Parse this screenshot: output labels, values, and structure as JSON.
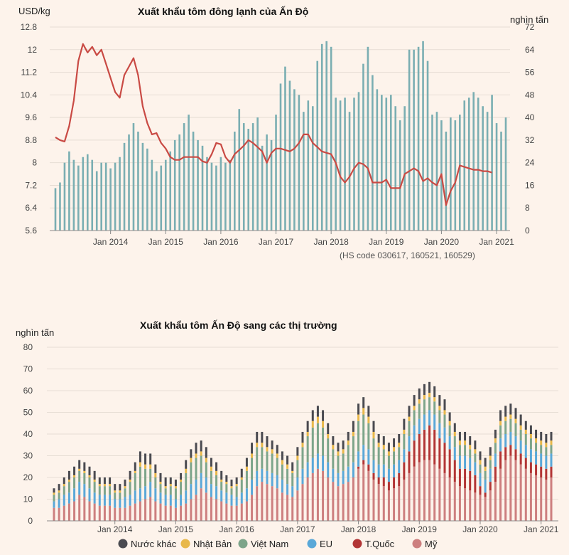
{
  "chart_data": [
    {
      "type": "bar+line",
      "title": "Xuất khẩu tôm đông lạnh của Ấn Độ",
      "left_unit": "USD/kg",
      "right_unit": "nghìn tấn",
      "note": "(HS code 030617, 160521, 160529)",
      "left_ticks": [
        "5.6",
        "6.4",
        "7.2",
        "8",
        "8.8",
        "9.6",
        "10.4",
        "11.2",
        "12",
        "12.8"
      ],
      "right_ticks": [
        "0",
        "8",
        "16",
        "24",
        "32",
        "40",
        "48",
        "56",
        "64",
        "72"
      ],
      "x_ticks": [
        "Jan 2014",
        "Jan 2015",
        "Jan 2016",
        "Jan 2017",
        "Jan 2018",
        "Jan 2019",
        "Jan 2020",
        "Jan 2021"
      ],
      "ylim_left": [
        5.6,
        12.8
      ],
      "ylim_right": [
        0,
        72
      ],
      "start_month": "2013-01",
      "volume_thousand_tonnes": [
        15,
        17,
        24,
        28,
        25,
        23,
        26,
        27,
        25,
        21,
        24,
        24,
        22,
        24,
        26,
        31,
        34,
        38,
        35,
        31,
        29,
        25,
        21,
        23,
        25,
        28,
        32,
        34,
        38,
        41,
        35,
        32,
        30,
        26,
        24,
        23,
        26,
        24,
        25,
        35,
        43,
        38,
        36,
        38,
        40,
        30,
        34,
        32,
        41,
        52,
        58,
        53,
        50,
        48,
        42,
        46,
        44,
        60,
        66,
        67,
        65,
        47,
        46,
        47,
        42,
        47,
        49,
        59,
        65,
        55,
        50,
        48,
        47,
        48,
        44,
        39,
        44,
        64,
        64,
        65,
        67,
        60,
        41,
        42,
        39,
        35,
        40,
        39,
        41,
        46,
        47,
        49,
        47,
        44,
        42,
        48,
        38,
        35,
        40
      ],
      "price_usd_per_kg": [
        8.9,
        8.8,
        8.75,
        9.3,
        10.2,
        11.6,
        12.2,
        11.9,
        12.1,
        11.8,
        12.0,
        11.5,
        11.0,
        10.5,
        10.3,
        11.1,
        11.4,
        11.7,
        11.1,
        10.0,
        9.4,
        9.0,
        9.05,
        8.7,
        8.5,
        8.2,
        8.1,
        8.1,
        8.2,
        8.2,
        8.2,
        8.2,
        8.05,
        8.0,
        8.3,
        8.7,
        8.65,
        8.2,
        8.0,
        8.3,
        8.45,
        8.6,
        8.8,
        8.7,
        8.55,
        8.4,
        8.0,
        8.35,
        8.5,
        8.5,
        8.45,
        8.4,
        8.5,
        8.7,
        9.0,
        9.0,
        8.7,
        8.55,
        8.4,
        8.35,
        8.3,
        8.0,
        7.5,
        7.3,
        7.5,
        7.8,
        8.0,
        7.95,
        7.8,
        7.3,
        7.3,
        7.3,
        7.4,
        7.1,
        7.1,
        7.1,
        7.6,
        7.7,
        7.8,
        7.7,
        7.35,
        7.45,
        7.3,
        7.2,
        7.6,
        6.5,
        7.0,
        7.3,
        7.9,
        7.85,
        7.8,
        7.75,
        7.75,
        7.7,
        7.7,
        7.65
      ]
    },
    {
      "type": "stacked_bar",
      "title": "Xuất khẩu tôm Ấn Độ sang các thị trường",
      "unit": "nghìn tấn",
      "y_ticks": [
        "0",
        "10",
        "20",
        "30",
        "40",
        "50",
        "60",
        "70",
        "80"
      ],
      "ylim": [
        0,
        80
      ],
      "x_ticks": [
        "Jan 2014",
        "Jan 2015",
        "Jan 2016",
        "Jan 2017",
        "Jan 2018",
        "Jan 2019",
        "Jan 2020",
        "Jan 2021"
      ],
      "start_month": "2013-01",
      "series": [
        {
          "name": "Mỹ",
          "color": "#cd7f7f",
          "values": [
            6,
            6,
            7,
            8,
            9,
            12,
            11,
            9,
            8,
            7,
            7,
            7,
            6,
            6,
            6,
            7,
            8,
            9,
            10,
            11,
            9,
            8,
            7,
            7,
            6,
            7,
            8,
            10,
            12,
            15,
            13,
            11,
            10,
            9,
            8,
            7,
            7,
            8,
            9,
            12,
            16,
            18,
            17,
            16,
            15,
            13,
            12,
            11,
            14,
            17,
            20,
            22,
            24,
            23,
            20,
            18,
            16,
            17,
            18,
            20,
            24,
            26,
            23,
            19,
            17,
            16,
            14,
            15,
            16,
            19,
            22,
            25,
            27,
            28,
            28,
            26,
            24,
            22,
            20,
            18,
            16,
            15,
            14,
            13,
            12,
            11,
            14,
            18,
            24,
            28,
            30,
            28,
            26,
            24,
            22,
            21,
            20,
            19,
            20
          ]
        },
        {
          "name": "T.Quốc",
          "color": "#b23535",
          "values": [
            0,
            0,
            0,
            0,
            0,
            0,
            0,
            0,
            0,
            0,
            0,
            0,
            0,
            0,
            0,
            0,
            0,
            0,
            0,
            0,
            0,
            0,
            0,
            0,
            0,
            0,
            0,
            0,
            0,
            0,
            0,
            0,
            0,
            0,
            0,
            0,
            0,
            0,
            0,
            0,
            0,
            0,
            0,
            0,
            0,
            0,
            0,
            0,
            0,
            0,
            0,
            0,
            0,
            0,
            0,
            0,
            0,
            0,
            0,
            0,
            1,
            2,
            3,
            3,
            3,
            4,
            4,
            5,
            6,
            8,
            10,
            12,
            13,
            14,
            16,
            16,
            14,
            14,
            13,
            10,
            8,
            9,
            9,
            8,
            4,
            2,
            4,
            7,
            8,
            6,
            5,
            5,
            5,
            5,
            5,
            5,
            5,
            5,
            5
          ]
        },
        {
          "name": "EU",
          "color": "#5aa8d8",
          "values": [
            3,
            4,
            5,
            5,
            6,
            6,
            6,
            6,
            5,
            5,
            5,
            5,
            4,
            4,
            5,
            5,
            6,
            6,
            6,
            7,
            6,
            5,
            5,
            5,
            4,
            5,
            6,
            7,
            7,
            7,
            7,
            6,
            6,
            5,
            5,
            5,
            4,
            5,
            6,
            7,
            7,
            6,
            6,
            6,
            6,
            6,
            5,
            5,
            6,
            7,
            7,
            7,
            7,
            7,
            7,
            6,
            6,
            6,
            7,
            7,
            7,
            7,
            7,
            6,
            6,
            6,
            6,
            6,
            6,
            6,
            7,
            7,
            7,
            7,
            7,
            7,
            7,
            7,
            6,
            6,
            6,
            6,
            6,
            6,
            6,
            6,
            6,
            6,
            6,
            6,
            6,
            6,
            6,
            6,
            6,
            6,
            6,
            6,
            6
          ]
        },
        {
          "name": "Việt Nam",
          "color": "#7da58a",
          "values": [
            3,
            3,
            4,
            5,
            5,
            5,
            5,
            5,
            5,
            4,
            4,
            4,
            3,
            3,
            4,
            6,
            8,
            10,
            8,
            6,
            5,
            4,
            3,
            4,
            5,
            6,
            8,
            10,
            10,
            8,
            7,
            6,
            5,
            4,
            4,
            3,
            5,
            6,
            8,
            10,
            11,
            10,
            9,
            9,
            8,
            7,
            7,
            6,
            8,
            10,
            12,
            14,
            14,
            13,
            11,
            9,
            8,
            8,
            10,
            12,
            14,
            14,
            12,
            10,
            8,
            7,
            6,
            6,
            6,
            7,
            7,
            7,
            7,
            7,
            6,
            6,
            6,
            6,
            5,
            5,
            5,
            5,
            4,
            4,
            4,
            4,
            4,
            5,
            6,
            6,
            6,
            6,
            5,
            5,
            5,
            4,
            4,
            4,
            4
          ]
        },
        {
          "name": "Nhật Bản",
          "color": "#e8b84a",
          "values": [
            1,
            1,
            1,
            1,
            1,
            1,
            1,
            1,
            1,
            1,
            1,
            1,
            1,
            1,
            1,
            1,
            1,
            2,
            2,
            2,
            2,
            1,
            1,
            1,
            1,
            1,
            2,
            2,
            2,
            2,
            2,
            2,
            2,
            1,
            1,
            1,
            1,
            1,
            2,
            2,
            2,
            2,
            2,
            2,
            2,
            2,
            2,
            1,
            2,
            2,
            2,
            3,
            3,
            3,
            2,
            2,
            2,
            2,
            2,
            2,
            3,
            3,
            3,
            3,
            2,
            2,
            2,
            2,
            2,
            2,
            2,
            2,
            2,
            2,
            2,
            2,
            2,
            2,
            2,
            2,
            2,
            2,
            2,
            2,
            2,
            2,
            2,
            2,
            2,
            2,
            2,
            2,
            2,
            2,
            2,
            2,
            2,
            2,
            2
          ]
        },
        {
          "name": "Nước khác",
          "color": "#4a4a50",
          "values": [
            2,
            3,
            3,
            4,
            4,
            4,
            4,
            4,
            4,
            3,
            3,
            3,
            3,
            3,
            3,
            4,
            4,
            5,
            5,
            5,
            4,
            4,
            4,
            3,
            3,
            3,
            4,
            4,
            5,
            5,
            5,
            4,
            4,
            4,
            3,
            3,
            3,
            4,
            4,
            5,
            5,
            5,
            5,
            4,
            4,
            4,
            4,
            4,
            4,
            5,
            5,
            5,
            5,
            5,
            5,
            4,
            4,
            4,
            4,
            5,
            5,
            5,
            5,
            5,
            4,
            4,
            4,
            4,
            4,
            5,
            5,
            5,
            5,
            5,
            5,
            5,
            5,
            5,
            4,
            4,
            4,
            4,
            4,
            4,
            4,
            4,
            4,
            4,
            5,
            5,
            5,
            5,
            5,
            4,
            4,
            4,
            4,
            4,
            4
          ]
        }
      ]
    }
  ]
}
